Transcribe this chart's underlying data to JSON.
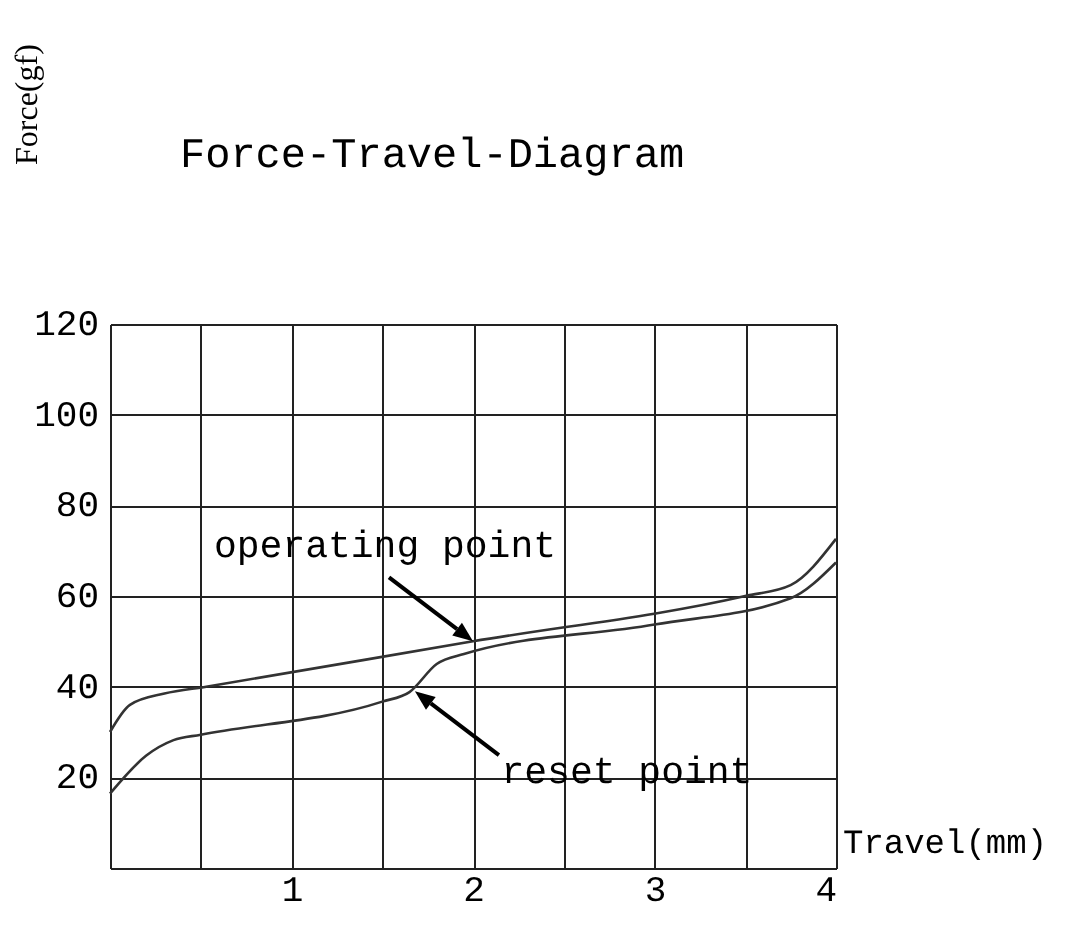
{
  "chart_data": {
    "type": "line",
    "title": "Force-Travel-Diagram",
    "xlabel": "Travel(mm)",
    "ylabel": "Force(gf)",
    "series": [
      {
        "color": "#333333",
        "x": [
          0,
          0.11,
          0.3,
          0.53,
          2,
          3.5,
          3.75,
          4
        ],
        "values": [
          30,
          36,
          38.5,
          40,
          50,
          60,
          62.4,
          72.6
        ]
      },
      {
        "color": "#333333",
        "x": [
          0,
          0.2,
          0.35,
          0.5,
          1.5,
          1.65,
          1.8,
          1.95,
          3,
          3.75,
          4
        ],
        "values": [
          16.4,
          24.8,
          28.2,
          29.4,
          36.7,
          38.8,
          45,
          47.2,
          53.7,
          59.5,
          67.4
        ]
      }
    ],
    "xlim": [
      0,
      4
    ],
    "ylim": [
      0,
      120
    ],
    "xticks": [
      {
        "value": 0,
        "label": null
      },
      {
        "value": 0.5,
        "label": null
      },
      1,
      {
        "value": 1.5,
        "label": null
      },
      2,
      {
        "value": 2.5,
        "label": null
      },
      3,
      {
        "value": 3.5,
        "label": null
      },
      4
    ],
    "yticks": [
      {
        "value": 0,
        "label": null
      },
      20,
      40,
      60,
      80,
      100,
      120
    ],
    "annotations": [
      {
        "text": "operating point",
        "x": 2,
        "y": 50
      },
      {
        "text": "reset point",
        "x": 1.68,
        "y": 39
      }
    ],
    "grid": true,
    "marker": "none",
    "line_style": "solid"
  }
}
